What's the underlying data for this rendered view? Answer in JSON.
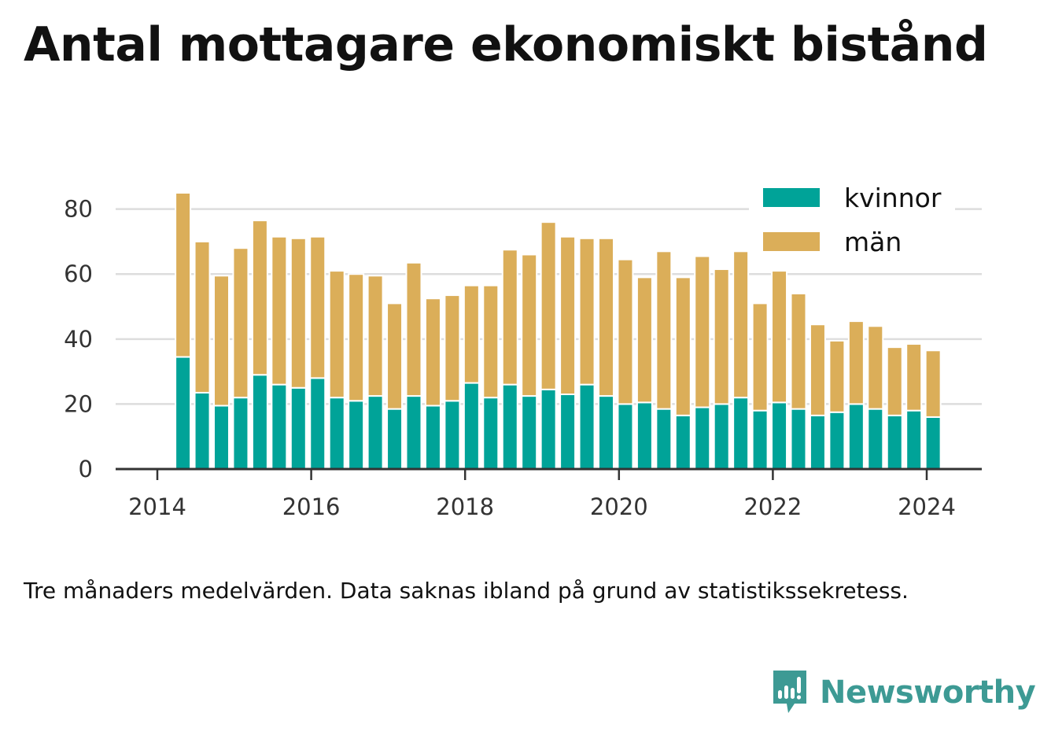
{
  "title": "Antal mottagare ekonomiskt bistånd",
  "note": "Tre månaders medelvärden. Data saknas ibland på grund av statistikssekretess.",
  "brand": {
    "name": "Newsworthy",
    "icon": "bar-chart-speech-bubble-icon",
    "color": "#3d9a94"
  },
  "chart_data": {
    "type": "bar",
    "stacked": true,
    "x": [
      "2014-05",
      "2014-08",
      "2014-11",
      "2015-02",
      "2015-05",
      "2015-08",
      "2015-11",
      "2016-02",
      "2016-05",
      "2016-08",
      "2016-11",
      "2017-02",
      "2017-05",
      "2017-08",
      "2017-11",
      "2018-02",
      "2018-05",
      "2018-08",
      "2018-11",
      "2019-02",
      "2019-05",
      "2019-08",
      "2019-11",
      "2020-02",
      "2020-05",
      "2020-08",
      "2020-11",
      "2021-02",
      "2021-05",
      "2021-08",
      "2021-11",
      "2022-02",
      "2022-05",
      "2022-08",
      "2022-11",
      "2023-02",
      "2023-05",
      "2023-08",
      "2023-11",
      "2024-02"
    ],
    "series": [
      {
        "name": "kvinnor",
        "color": "#00a398",
        "values": [
          34.5,
          23.5,
          19.5,
          22,
          29,
          26,
          25,
          28,
          22,
          21,
          22.5,
          18.5,
          22.5,
          19.5,
          21,
          26.5,
          22,
          26,
          22.5,
          24.5,
          23,
          26,
          22.5,
          20,
          20.5,
          18.5,
          16.5,
          19,
          20,
          22,
          18,
          20.5,
          18.5,
          16.5,
          17.5,
          20,
          18.5,
          16.5,
          18,
          16
        ]
      },
      {
        "name": "män",
        "color": "#dbae59",
        "values": [
          50.5,
          46.5,
          40,
          46,
          47.5,
          45.5,
          46,
          43.5,
          39,
          39,
          37,
          32.5,
          41,
          33,
          32.5,
          30,
          34.5,
          41.5,
          43.5,
          51.5,
          48.5,
          45,
          48.5,
          44.5,
          38.5,
          48.5,
          42.5,
          46.5,
          41.5,
          45,
          33,
          40.5,
          35.5,
          28,
          22,
          25.5,
          25.5,
          21,
          20.5,
          20.5
        ]
      }
    ],
    "ylim": [
      0,
      85
    ],
    "yticks": [
      0,
      20,
      40,
      60,
      80
    ],
    "xticks": [
      "2014",
      "2016",
      "2018",
      "2020",
      "2022",
      "2024"
    ],
    "grid": true,
    "legend": "top-right",
    "xlabel": "",
    "ylabel": ""
  }
}
